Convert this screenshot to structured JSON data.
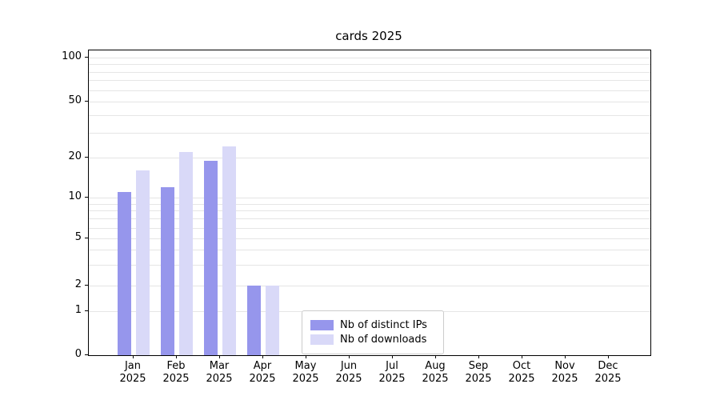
{
  "title": "cards 2025",
  "chart_data": {
    "type": "bar",
    "categories": [
      "Jan",
      "Feb",
      "Mar",
      "Apr",
      "May",
      "Jun",
      "Jul",
      "Aug",
      "Sep",
      "Oct",
      "Nov",
      "Dec"
    ],
    "year_label": "2025",
    "series": [
      {
        "name": "Nb of distinct IPs",
        "color": "#9696ec",
        "values": [
          11,
          12,
          19,
          2,
          0,
          0,
          0,
          0,
          0,
          0,
          0,
          0
        ]
      },
      {
        "name": "Nb of downloads",
        "color": "#d9d9f8",
        "values": [
          16,
          22,
          24,
          2,
          0,
          0,
          0,
          0,
          0,
          0,
          0,
          0
        ]
      }
    ],
    "y_ticks": [
      0,
      1,
      2,
      5,
      10,
      20,
      50,
      100
    ],
    "y_minor_ticks": [
      3,
      4,
      6,
      7,
      8,
      9,
      30,
      40,
      60,
      70,
      80,
      90
    ],
    "yscale": "symlog",
    "ylim": [
      0,
      110
    ],
    "grid": "horizontal",
    "legend_position": "lower center"
  }
}
